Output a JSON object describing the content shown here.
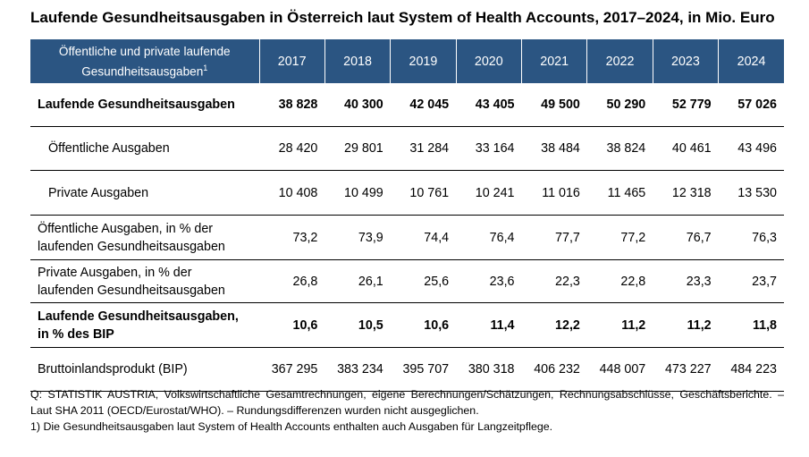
{
  "title": "Laufende Gesundheitsausgaben in Österreich laut System of Health Accounts, 2017–2024, in Mio. Euro",
  "chart_data": {
    "type": "table",
    "header_label_line1": "Öffentliche und private laufende",
    "header_label_line2": "Gesundheitsausgaben",
    "header_footnote_mark": "1",
    "years": [
      "2017",
      "2018",
      "2019",
      "2020",
      "2021",
      "2022",
      "2023",
      "2024"
    ],
    "rows": [
      {
        "label": "Laufende Gesundheitsausgaben",
        "label2": "",
        "bold": true,
        "indent": false,
        "cells": [
          "38 828",
          "40 300",
          "42 045",
          "43 405",
          "49 500",
          "50 290",
          "52 779",
          "57 026"
        ]
      },
      {
        "label": "Öffentliche Ausgaben",
        "label2": "",
        "bold": false,
        "indent": true,
        "cells": [
          "28 420",
          "29 801",
          "31 284",
          "33 164",
          "38 484",
          "38 824",
          "40 461",
          "43 496"
        ]
      },
      {
        "label": "Private Ausgaben",
        "label2": "",
        "bold": false,
        "indent": true,
        "cells": [
          "10 408",
          "10 499",
          "10 761",
          "10 241",
          "11 016",
          "11 465",
          "12 318",
          "13 530"
        ]
      },
      {
        "label": "Öffentliche Ausgaben, in % der",
        "label2": "laufenden Gesundheitsausgaben",
        "bold": false,
        "indent": false,
        "cells": [
          "73,2",
          "73,9",
          "74,4",
          "76,4",
          "77,7",
          "77,2",
          "76,7",
          "76,3"
        ]
      },
      {
        "label": "Private Ausgaben, in % der",
        "label2": "laufenden Gesundheitsausgaben",
        "bold": false,
        "indent": false,
        "cells": [
          "26,8",
          "26,1",
          "25,6",
          "23,6",
          "22,3",
          "22,8",
          "23,3",
          "23,7"
        ]
      },
      {
        "label": "Laufende Gesundheitsausgaben,",
        "label2": "in % des BIP",
        "bold": true,
        "indent": false,
        "cells": [
          "10,6",
          "10,5",
          "10,6",
          "11,4",
          "12,2",
          "11,2",
          "11,2",
          "11,8"
        ]
      },
      {
        "label": "Bruttoinlandsprodukt (BIP)",
        "label2": "",
        "bold": false,
        "indent": false,
        "cells": [
          "367 295",
          "383 234",
          "395 707",
          "380 318",
          "406 232",
          "448 007",
          "473 227",
          "484 223"
        ]
      }
    ]
  },
  "notes": {
    "source": "Q: STATISTIK AUSTRIA, Volkswirtschaftliche Gesamtrechnungen, eigene Berechnungen/Schätzungen, Rechnungsabschlüsse, Geschäftsberichte. – Laut SHA 2011 (OECD/Eurostat/WHO). – Rundungsdifferenzen wurden nicht ausgeglichen.",
    "footnote": "1) Die Gesundheitsausgaben laut System of Health Accounts enthalten auch Ausgaben für Langzeitpflege."
  },
  "colors": {
    "header_bg": "#2b5582",
    "header_text": "#ffffff"
  }
}
